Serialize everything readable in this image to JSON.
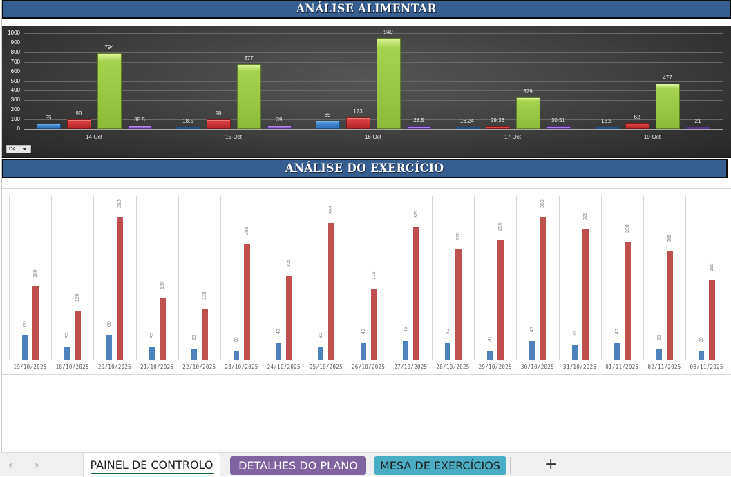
{
  "sections": {
    "food_title": "ANÁLISE ALIMENTAR",
    "exercise_title": "ANÁLISE DO EXERCÍCIO"
  },
  "filter_button": {
    "label": "DA..."
  },
  "tabs": {
    "prev_icon": "‹",
    "next_icon": "›",
    "items": [
      {
        "label": "PAINEL DE CONTROLO",
        "active": true,
        "color": "#ffffff"
      },
      {
        "label": "DETALHES DO PLANO",
        "active": false,
        "color": "#8064a2"
      },
      {
        "label": "MESA DE EXERCÍCIOS",
        "active": false,
        "color": "#4bacc6"
      }
    ],
    "add_icon": "+"
  },
  "chart_data": [
    {
      "type": "bar",
      "title": "ANÁLISE ALIMENTAR",
      "xlabel": "",
      "ylabel": "",
      "ylim": [
        0,
        1000
      ],
      "yticks": [
        0,
        100,
        200,
        300,
        400,
        500,
        600,
        700,
        800,
        900,
        1000
      ],
      "grid": true,
      "legend": "none",
      "categories": [
        "14-Oct",
        "15-Oct",
        "16-Oct",
        "17-Oct",
        "19-Oct"
      ],
      "series": [
        {
          "name": "Series 1",
          "color": "#4a8fd6",
          "values": [
            55,
            18.5,
            85,
            16.24,
            13.5
          ]
        },
        {
          "name": "Series 2",
          "color": "#d93f3f",
          "values": [
            98,
            98,
            123,
            29.36,
            62
          ]
        },
        {
          "name": "Series 3",
          "color": "#a6d24e",
          "values": [
            794,
            677,
            949,
            329,
            477
          ]
        },
        {
          "name": "Series 4",
          "color": "#9d6fd8",
          "values": [
            38.5,
            39,
            28.5,
            30.51,
            21
          ]
        }
      ]
    },
    {
      "type": "bar",
      "title": "ANÁLISE DO EXERCÍCIO",
      "xlabel": "",
      "ylabel": "",
      "ylim": [
        0,
        400
      ],
      "grid": true,
      "legend": "none",
      "categories": [
        "19/10/2025",
        "18/10/2025",
        "20/10/2025",
        "21/10/2025",
        "22/10/2025",
        "23/10/2025",
        "24/10/2025",
        "25/10/2025",
        "26/10/2025",
        "27/10/2025",
        "28/10/2025",
        "29/10/2025",
        "30/10/2025",
        "31/10/2025",
        "01/11/2025",
        "02/11/2025",
        "03/11/2025"
      ],
      "series": [
        {
          "name": "Series 1",
          "color": "#4f81bd",
          "values": [
            60,
            30,
            60,
            30,
            25,
            20,
            40,
            30,
            40,
            45,
            40,
            20,
            45,
            35,
            40,
            25,
            20
          ]
        },
        {
          "name": "Series 2",
          "color": "#c0504d",
          "values": [
            180,
            120,
            350,
            150,
            125,
            285,
            205,
            335,
            175,
            325,
            270,
            295,
            350,
            320,
            290,
            265,
            195
          ]
        }
      ]
    }
  ]
}
